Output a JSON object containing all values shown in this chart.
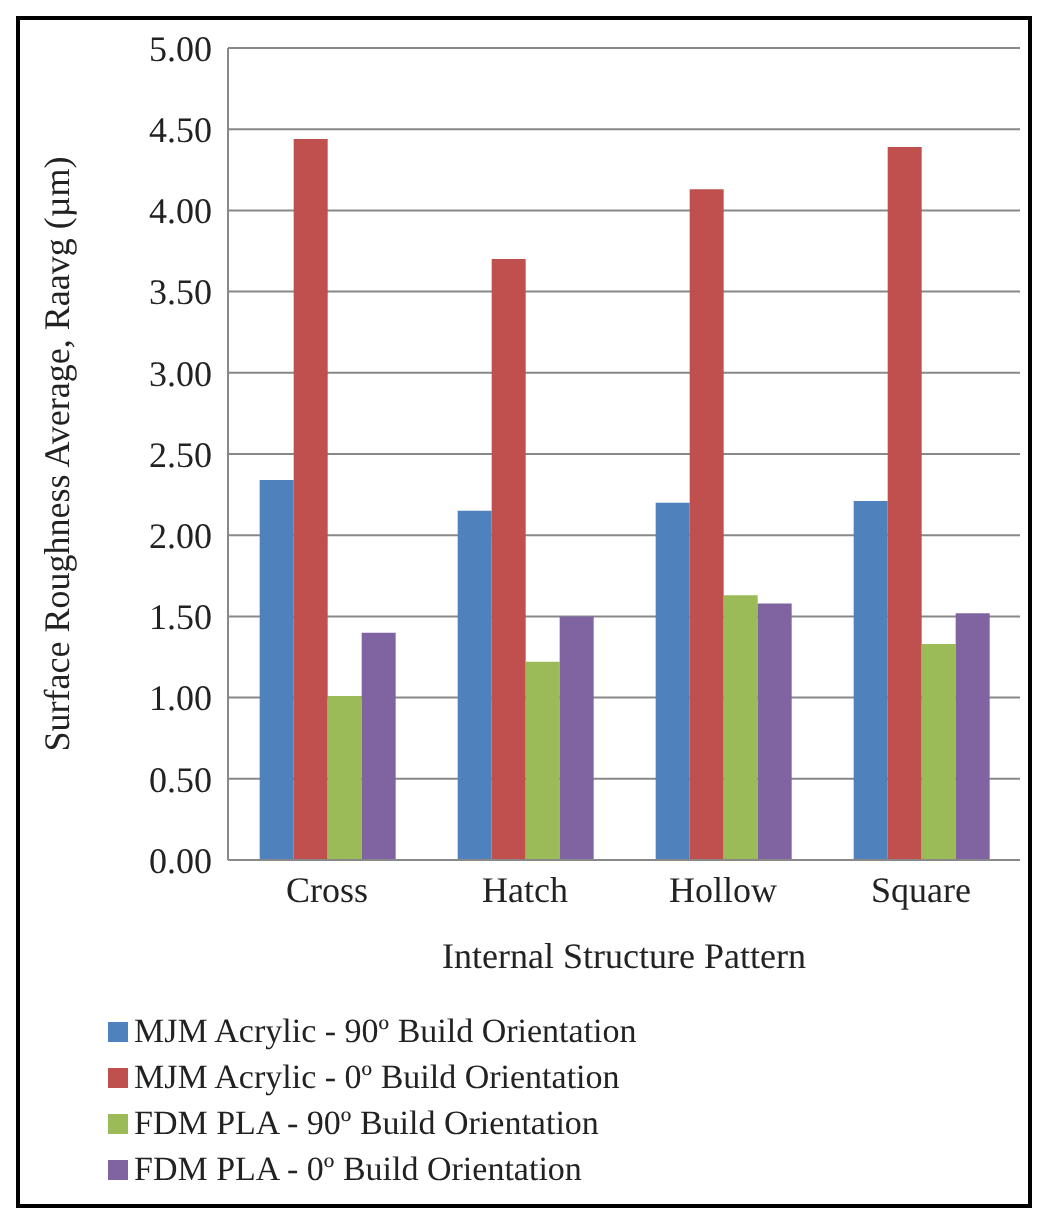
{
  "chart_data": {
    "type": "bar",
    "xlabel": "Internal Structure Pattern",
    "ylabel": "Surface Roughness Average, Raavg (µm)",
    "categories": [
      "Cross",
      "Hatch",
      "Hollow",
      "Square"
    ],
    "series": [
      {
        "name": "MJM Acrylic - 90º Build Orientation",
        "color": "#4f81bd",
        "values": [
          2.34,
          2.15,
          2.2,
          2.21
        ]
      },
      {
        "name": "MJM Acrylic - 0º Build Orientation",
        "color": "#c0504d",
        "values": [
          4.44,
          3.7,
          4.13,
          4.39
        ]
      },
      {
        "name": "FDM PLA - 90º Build Orientation",
        "color": "#9bbb59",
        "values": [
          1.01,
          1.22,
          1.63,
          1.33
        ]
      },
      {
        "name": "FDM PLA - 0º Build Orientation",
        "color": "#8064a2",
        "values": [
          1.4,
          1.5,
          1.58,
          1.52
        ]
      }
    ],
    "ylim": [
      0,
      5
    ],
    "yticks": [
      {
        "value": 0,
        "label": "0.00"
      },
      {
        "value": 0.5,
        "label": "0.50"
      },
      {
        "value": 1,
        "label": "1.00"
      },
      {
        "value": 1.5,
        "label": "1.50"
      },
      {
        "value": 2,
        "label": "2.00"
      },
      {
        "value": 2.5,
        "label": "2.50"
      },
      {
        "value": 3,
        "label": "3.00"
      },
      {
        "value": 3.5,
        "label": "3.50"
      },
      {
        "value": 4,
        "label": "4.00"
      },
      {
        "value": 4.5,
        "label": "4.50"
      },
      {
        "value": 5,
        "label": "5.00"
      }
    ],
    "grid": "y",
    "legend": "bottom"
  }
}
